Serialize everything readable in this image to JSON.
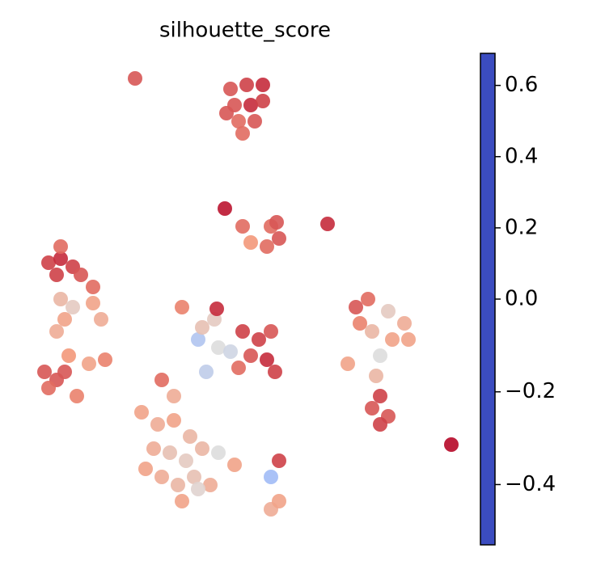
{
  "chart_data": {
    "type": "scatter",
    "title": "silhouette_score",
    "x": [
      167,
      285,
      305,
      325,
      290,
      310,
      325,
      295,
      315,
      300,
      280,
      278,
      300,
      310,
      335,
      345,
      330,
      342,
      405,
      60,
      75,
      90,
      100,
      70,
      115,
      75,
      75,
      80,
      70,
      90,
      115,
      125,
      55,
      70,
      60,
      80,
      95,
      85,
      130,
      110,
      300,
      320,
      335,
      310,
      330,
      340,
      295,
      265,
      270,
      255,
      245,
      285,
      225,
      268,
      250,
      175,
      195,
      215,
      235,
      190,
      210,
      230,
      250,
      180,
      200,
      220,
      240,
      260,
      225,
      200,
      215,
      245,
      270,
      290,
      345,
      335,
      335,
      345,
      440,
      455,
      480,
      500,
      505,
      460,
      485,
      445,
      470,
      465,
      470,
      460,
      480,
      470,
      430,
      558
    ],
    "y": [
      597,
      584,
      589,
      589,
      564,
      564,
      569,
      544,
      544,
      529,
      554,
      436,
      414,
      394,
      414,
      399,
      389,
      419,
      417,
      369,
      374,
      364,
      354,
      354,
      339,
      389,
      324,
      299,
      284,
      314,
      319,
      299,
      234,
      224,
      214,
      234,
      204,
      254,
      249,
      244,
      284,
      274,
      284,
      254,
      249,
      234,
      239,
      299,
      264,
      234,
      274,
      259,
      314,
      312,
      289,
      184,
      169,
      174,
      154,
      139,
      134,
      124,
      139,
      114,
      104,
      94,
      104,
      94,
      74,
      224,
      204,
      89,
      134,
      119,
      124,
      104,
      64,
      74,
      314,
      324,
      309,
      294,
      274,
      284,
      274,
      294,
      254,
      229,
      204,
      189,
      179,
      169,
      244,
      144
    ],
    "values": [
      0.5,
      0.5,
      0.55,
      0.6,
      0.5,
      0.6,
      0.55,
      0.45,
      0.5,
      0.45,
      0.5,
      0.65,
      0.45,
      0.35,
      0.45,
      0.5,
      0.45,
      0.5,
      0.6,
      0.55,
      0.6,
      0.55,
      0.5,
      0.55,
      0.45,
      0.45,
      0.2,
      0.3,
      0.25,
      0.1,
      0.3,
      0.25,
      0.5,
      0.5,
      0.45,
      0.5,
      0.4,
      0.35,
      0.4,
      0.3,
      0.55,
      0.55,
      0.5,
      0.5,
      0.6,
      0.55,
      0.45,
      0.1,
      0,
      -0.1,
      -0.15,
      -0.05,
      0.4,
      0.6,
      0.15,
      0.3,
      0.25,
      0.3,
      0.2,
      0.25,
      0.15,
      0.1,
      0.2,
      0.3,
      0.25,
      0.2,
      0.15,
      0.25,
      0.3,
      0.45,
      0.25,
      0.05,
      0,
      0.3,
      0.55,
      -0.2,
      0.25,
      0.3,
      0.5,
      0.45,
      0.1,
      0.25,
      0.3,
      0.2,
      0.3,
      0.4,
      0,
      0.2,
      0.55,
      0.5,
      0.5,
      0.55,
      0.3,
      0.68
    ],
    "xlim": [
      0,
      748
    ],
    "ylim": [
      0,
      694
    ],
    "colormap": "coolwarm",
    "colorbar": {
      "lim": [
        -0.53,
        0.69
      ],
      "center": 0,
      "ticks": [
        {
          "value": -0.4,
          "label": "−0.4"
        },
        {
          "value": -0.2,
          "label": "−0.2"
        },
        {
          "value": 0,
          "label": "0.0"
        },
        0.2,
        0.4,
        0.6
      ]
    }
  }
}
